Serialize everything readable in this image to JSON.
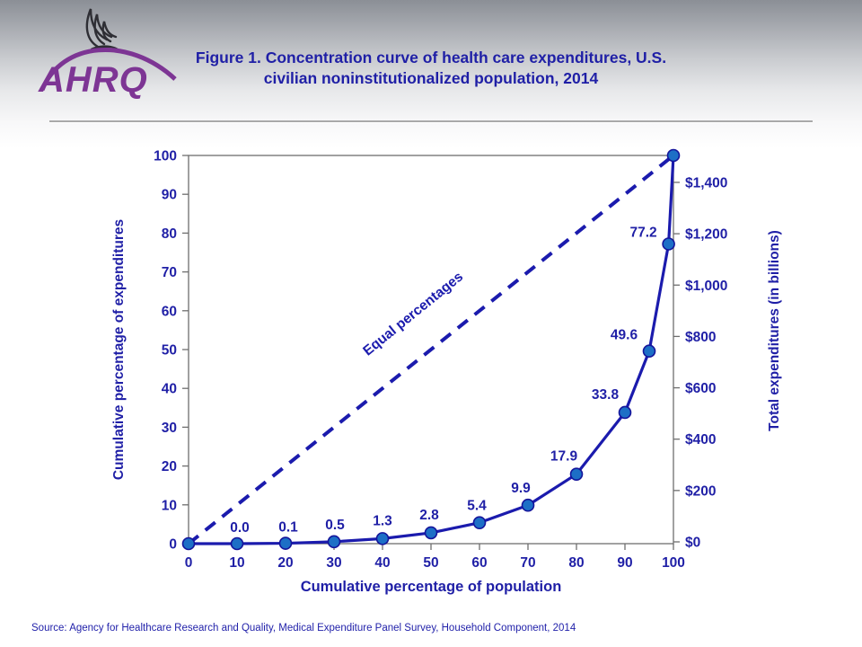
{
  "header": {
    "logo": {
      "text": "AHRQ",
      "eagle_icon": "hhs-eagle-icon"
    },
    "title_line1": "Figure 1. Concentration curve of health care expenditures, U.S.",
    "title_line2": "civilian noninstitutionalized population, 2014"
  },
  "colors": {
    "navy_text": "#1f1fa6",
    "curve_line": "#1b1bad",
    "dashed_line": "#1b1bad",
    "marker_fill": "#1d6fc6",
    "marker_stroke": "#14149b",
    "frame_gray": "#6e6e6e",
    "logo_purple": "#7d3594",
    "source_text": "#2222aa"
  },
  "chart_data": {
    "type": "line",
    "title": "",
    "xlabel": "Cumulative percentage of population",
    "ylabel_left": "Cumulative percentage of expenditures",
    "ylabel_right": "Total expenditures (in billions)",
    "xlim": [
      0,
      100
    ],
    "ylim_left": [
      0,
      100
    ],
    "x_ticks": [
      0,
      10,
      20,
      30,
      40,
      50,
      60,
      70,
      80,
      90,
      100
    ],
    "y_ticks_left": [
      0,
      10,
      20,
      30,
      40,
      50,
      60,
      70,
      80,
      90,
      100
    ],
    "y_ticks_right": [
      "$0",
      "$200",
      "$400",
      "$600",
      "$800",
      "$1,000",
      "$1,200",
      "$1,400"
    ],
    "grid": false,
    "legend": "none",
    "series": [
      {
        "name": "Concentration curve",
        "style": "solid-with-markers",
        "x": [
          0,
          10,
          20,
          30,
          40,
          50,
          60,
          70,
          80,
          90,
          95,
          99,
          100
        ],
        "y": [
          0,
          0.0,
          0.1,
          0.5,
          1.3,
          2.8,
          5.4,
          9.9,
          17.9,
          33.8,
          49.6,
          77.2,
          100
        ],
        "point_labels": [
          "",
          "0.0",
          "0.1",
          "0.5",
          "1.3",
          "2.8",
          "5.4",
          "9.9",
          "17.9",
          "33.8",
          "49.6",
          "77.2",
          ""
        ]
      },
      {
        "name": "Equal percentages",
        "style": "dashed",
        "x": [
          0,
          100
        ],
        "y": [
          0,
          100
        ],
        "annotation": "Equal percentages"
      }
    ]
  },
  "footer": {
    "source": "Source: Agency for Healthcare Research and Quality, Medical Expenditure Panel Survey, Household Component, 2014"
  }
}
